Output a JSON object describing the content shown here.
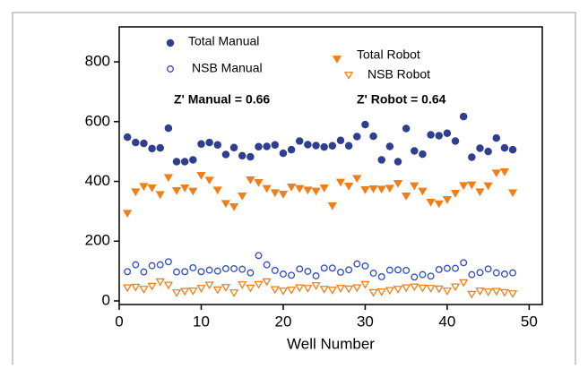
{
  "chart_data": {
    "type": "scatter",
    "x_label": "Well Number",
    "annotations": [
      "Z' Manual = 0.66",
      "Z' Robot = 0.64"
    ],
    "x": [
      1,
      2,
      3,
      4,
      5,
      6,
      7,
      8,
      9,
      10,
      11,
      12,
      13,
      14,
      15,
      16,
      17,
      18,
      19,
      20,
      21,
      22,
      23,
      24,
      25,
      26,
      27,
      28,
      29,
      30,
      31,
      32,
      33,
      34,
      35,
      36,
      37,
      38,
      39,
      40,
      41,
      42,
      43,
      44,
      45,
      46,
      47,
      48
    ],
    "series": [
      {
        "name": "Total Manual",
        "color": "#2e3f8f",
        "marker": "filled-circle",
        "values": [
          548,
          530,
          527,
          510,
          512,
          578,
          466,
          466,
          472,
          525,
          530,
          522,
          490,
          513,
          486,
          482,
          516,
          517,
          522,
          494,
          506,
          535,
          523,
          520,
          515,
          519,
          537,
          519,
          550,
          590,
          551,
          472,
          517,
          466,
          577,
          502,
          491,
          556,
          553,
          561,
          535,
          617,
          481,
          511,
          500,
          545,
          512,
          506
        ]
      },
      {
        "name": "NSB Manual",
        "color": "#2e4bbf",
        "marker": "open-circle",
        "values": [
          98,
          121,
          97,
          118,
          121,
          131,
          97,
          98,
          111,
          98,
          103,
          100,
          108,
          108,
          106,
          94,
          152,
          121,
          102,
          90,
          86,
          107,
          99,
          84,
          110,
          110,
          96,
          104,
          124,
          117,
          93,
          81,
          103,
          104,
          102,
          80,
          88,
          83,
          105,
          109,
          109,
          128,
          88,
          95,
          107,
          94,
          90,
          94
        ]
      },
      {
        "name": "Total Robot",
        "color": "#f07f1a",
        "marker": "filled-triangle",
        "values": [
          293,
          365,
          383,
          378,
          356,
          413,
          369,
          378,
          367,
          420,
          404,
          371,
          326,
          315,
          351,
          405,
          396,
          376,
          362,
          357,
          381,
          376,
          371,
          367,
          378,
          318,
          397,
          384,
          410,
          372,
          375,
          374,
          377,
          393,
          351,
          385,
          367,
          330,
          325,
          339,
          360,
          386,
          388,
          365,
          385,
          428,
          432,
          362
        ]
      },
      {
        "name": "NSB Robot",
        "color": "#f07f1a",
        "marker": "open-triangle",
        "values": [
          44,
          46,
          39,
          49,
          64,
          53,
          27,
          32,
          33,
          42,
          53,
          37,
          45,
          27,
          54,
          43,
          55,
          64,
          38,
          33,
          36,
          44,
          42,
          51,
          39,
          36,
          42,
          40,
          44,
          55,
          28,
          30,
          35,
          39,
          44,
          47,
          43,
          42,
          40,
          33,
          47,
          61,
          22,
          33,
          30,
          32,
          28,
          24
        ]
      }
    ],
    "xlim": [
      0,
      51.6
    ],
    "xticks": [
      0,
      10,
      20,
      30,
      40,
      50
    ],
    "ylim": [
      -12,
      917
    ],
    "yticks": [
      0,
      200,
      400,
      600,
      800
    ]
  }
}
